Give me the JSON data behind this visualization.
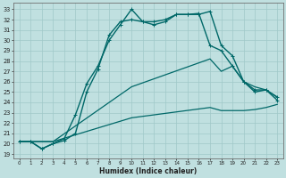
{
  "xlabel": "Humidex (Indice chaleur)",
  "bg_color": "#c0e0e0",
  "grid_color": "#a0c8c8",
  "line_color": "#006868",
  "xlim": [
    -0.5,
    23.5
  ],
  "ylim": [
    18.6,
    33.6
  ],
  "xticks": [
    0,
    1,
    2,
    3,
    4,
    5,
    6,
    7,
    8,
    9,
    10,
    11,
    12,
    13,
    14,
    15,
    16,
    17,
    18,
    19,
    20,
    21,
    22,
    23
  ],
  "yticks": [
    19,
    20,
    21,
    22,
    23,
    24,
    25,
    26,
    27,
    28,
    29,
    30,
    31,
    32,
    33
  ],
  "line1_x": [
    0,
    1,
    2,
    3,
    4,
    5,
    6,
    7,
    8,
    9,
    10,
    11,
    12,
    13,
    14,
    15,
    16,
    17,
    18,
    19,
    20,
    21,
    22,
    23
  ],
  "line1_y": [
    20.2,
    20.2,
    19.5,
    20.0,
    20.5,
    22.8,
    25.8,
    27.5,
    30.0,
    31.5,
    33.0,
    31.8,
    31.5,
    31.8,
    32.5,
    32.5,
    32.5,
    32.8,
    29.5,
    28.5,
    26.0,
    25.2,
    25.2,
    24.5
  ],
  "line2_x": [
    0,
    1,
    2,
    3,
    4,
    5,
    6,
    7,
    8,
    9,
    10,
    11,
    12,
    13,
    14,
    15,
    16,
    17,
    18,
    19,
    20,
    21,
    22,
    23
  ],
  "line2_y": [
    20.2,
    20.2,
    19.5,
    20.0,
    20.3,
    21.0,
    25.0,
    27.2,
    30.5,
    31.8,
    32.0,
    31.8,
    31.8,
    32.0,
    32.5,
    32.5,
    32.6,
    29.5,
    29.0,
    27.5,
    26.0,
    25.0,
    25.2,
    24.2
  ],
  "line3_x": [
    0,
    3,
    10,
    17,
    18,
    19,
    20,
    21,
    22,
    23
  ],
  "line3_y": [
    20.2,
    20.2,
    25.5,
    28.2,
    27.0,
    27.5,
    26.0,
    25.5,
    25.2,
    24.5
  ],
  "line4_x": [
    0,
    3,
    10,
    17,
    18,
    19,
    20,
    21,
    22,
    23
  ],
  "line4_y": [
    20.2,
    20.2,
    22.5,
    23.5,
    23.2,
    23.2,
    23.2,
    23.3,
    23.5,
    23.8
  ]
}
